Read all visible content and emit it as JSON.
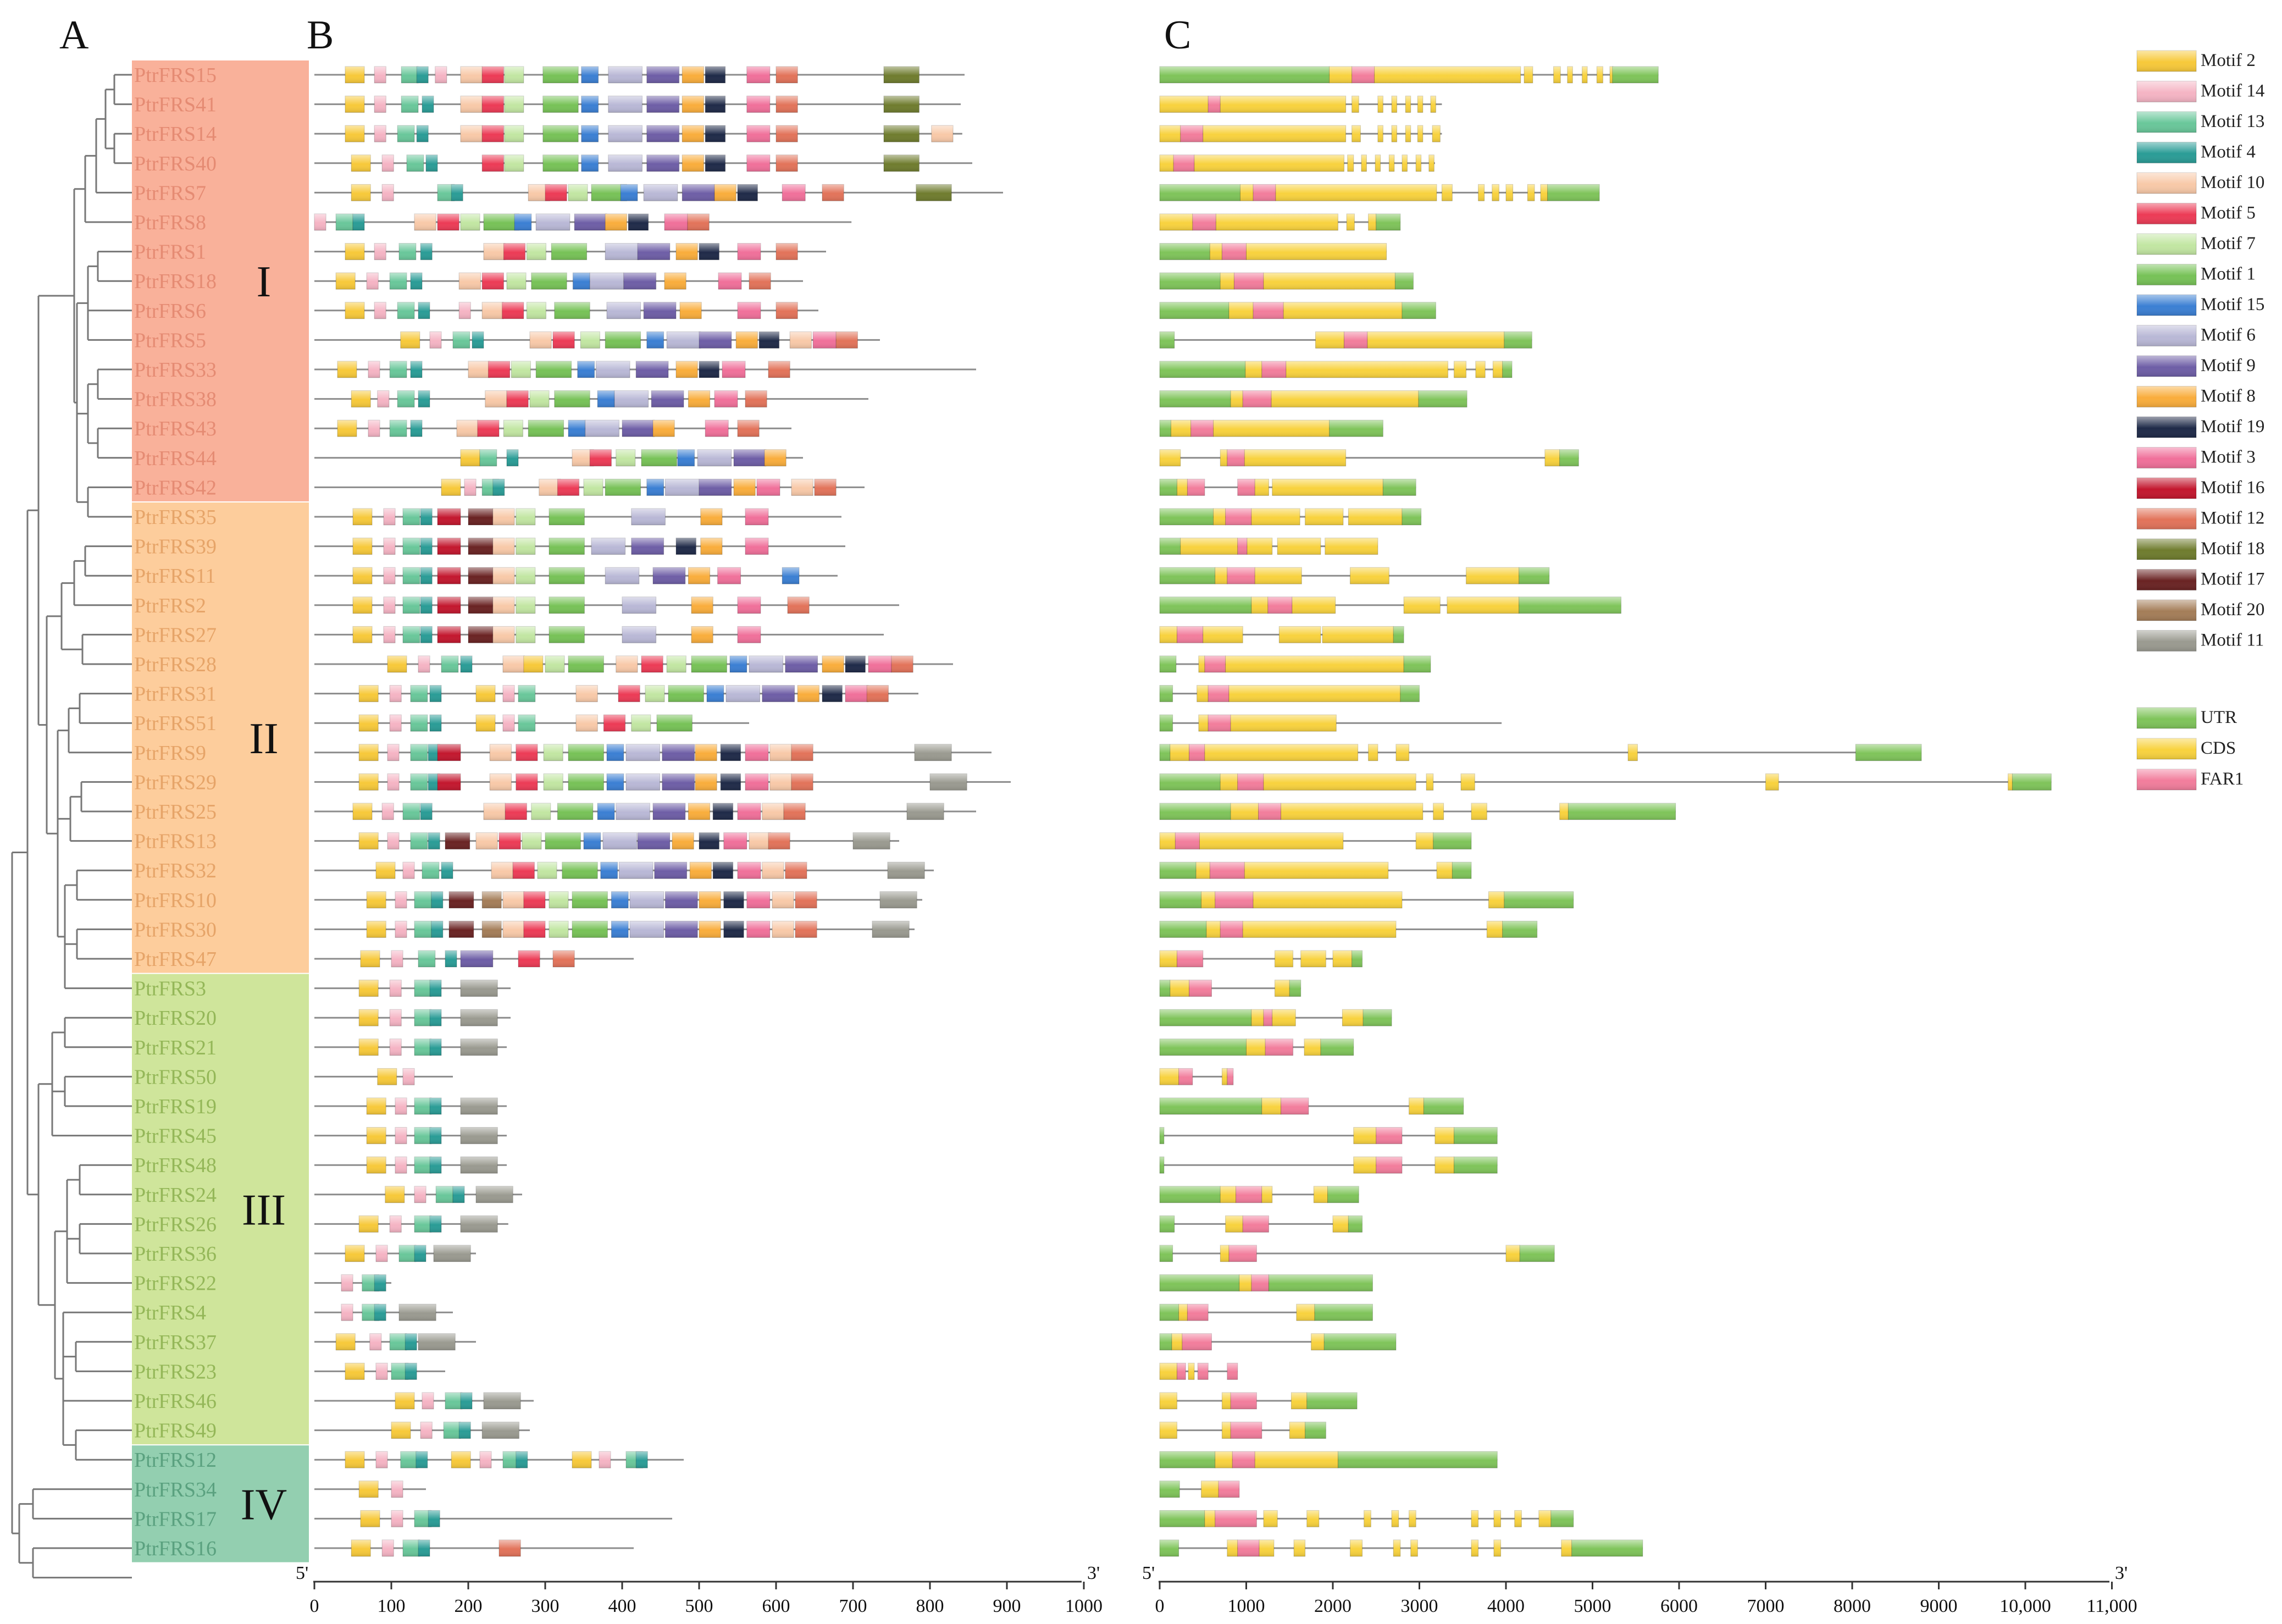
{
  "panel_labels": [
    "A",
    "B",
    "C"
  ],
  "groups": [
    {
      "label": "I",
      "color": "#f9b19a",
      "text_color": "#e58b73",
      "genes": [
        "PtrFRS15",
        "PtrFRS41",
        "PtrFRS14",
        "PtrFRS40",
        "PtrFRS7",
        "PtrFRS8",
        "PtrFRS1",
        "PtrFRS18",
        "PtrFRS6",
        "PtrFRS5",
        "PtrFRS33",
        "PtrFRS38",
        "PtrFRS43",
        "PtrFRS44",
        "PtrFRS42"
      ]
    },
    {
      "label": "II",
      "color": "#fdcd9c",
      "text_color": "#e6a468",
      "genes": [
        "PtrFRS35",
        "PtrFRS39",
        "PtrFRS11",
        "PtrFRS2",
        "PtrFRS27",
        "PtrFRS28",
        "PtrFRS31",
        "PtrFRS51",
        "PtrFRS9",
        "PtrFRS29",
        "PtrFRS25",
        "PtrFRS13",
        "PtrFRS32",
        "PtrFRS10",
        "PtrFRS30",
        "PtrFRS47"
      ]
    },
    {
      "label": "III",
      "color": "#cfe59b",
      "text_color": "#94b758",
      "genes": [
        "PtrFRS3",
        "PtrFRS20",
        "PtrFRS21",
        "PtrFRS50",
        "PtrFRS19",
        "PtrFRS45",
        "PtrFRS48",
        "PtrFRS24",
        "PtrFRS26",
        "PtrFRS36",
        "PtrFRS22",
        "PtrFRS4",
        "PtrFRS37",
        "PtrFRS23",
        "PtrFRS46",
        "PtrFRS49"
      ]
    },
    {
      "label": "IV",
      "color": "#93cfb0",
      "text_color": "#5aa17f",
      "genes": [
        "PtrFRS12",
        "PtrFRS34",
        "PtrFRS17",
        "PtrFRS16"
      ]
    }
  ],
  "motif_axis": {
    "ticks": [
      "0",
      "100",
      "200",
      "300",
      "400",
      "500",
      "600",
      "700",
      "800",
      "900",
      "1000"
    ],
    "five_prime": "5'",
    "three_prime": "3'"
  },
  "gene_axis": {
    "ticks": [
      "0",
      "1000",
      "2000",
      "3000",
      "4000",
      "5000",
      "6000",
      "7000",
      "8000",
      "9000",
      "10,000",
      "11,000"
    ],
    "five_prime": "5'",
    "three_prime": "3'"
  },
  "motif_legend": [
    {
      "name": "Motif 2",
      "color": "#f7c93a"
    },
    {
      "name": "Motif 14",
      "color": "#f5b4c4"
    },
    {
      "name": "Motif 13",
      "color": "#69c79a"
    },
    {
      "name": "Motif 4",
      "color": "#2a9c96"
    },
    {
      "name": "Motif 10",
      "color": "#f8c9a8"
    },
    {
      "name": "Motif 5",
      "color": "#ec3b56"
    },
    {
      "name": "Motif 7",
      "color": "#c2e6a2"
    },
    {
      "name": "Motif 1",
      "color": "#77c257"
    },
    {
      "name": "Motif 15",
      "color": "#3b7fd3"
    },
    {
      "name": "Motif 6",
      "color": "#b9b8d6"
    },
    {
      "name": "Motif 9",
      "color": "#6e5ea6"
    },
    {
      "name": "Motif 8",
      "color": "#f9ad3c"
    },
    {
      "name": "Motif 19",
      "color": "#1f2a48"
    },
    {
      "name": "Motif 3",
      "color": "#f0709a"
    },
    {
      "name": "Motif 16",
      "color": "#c3172e"
    },
    {
      "name": "Motif 12",
      "color": "#e2735a"
    },
    {
      "name": "Motif 18",
      "color": "#6f7c2e"
    },
    {
      "name": "Motif 17",
      "color": "#6a2323"
    },
    {
      "name": "Motif 20",
      "color": "#a47d58"
    },
    {
      "name": "Motif 11",
      "color": "#9a9a90"
    }
  ],
  "structure_legend": [
    {
      "name": "UTR",
      "color": "#7fc45a"
    },
    {
      "name": "CDS",
      "color": "#f8d23e"
    },
    {
      "name": "FAR1",
      "color": "#f27d9c"
    }
  ]
}
